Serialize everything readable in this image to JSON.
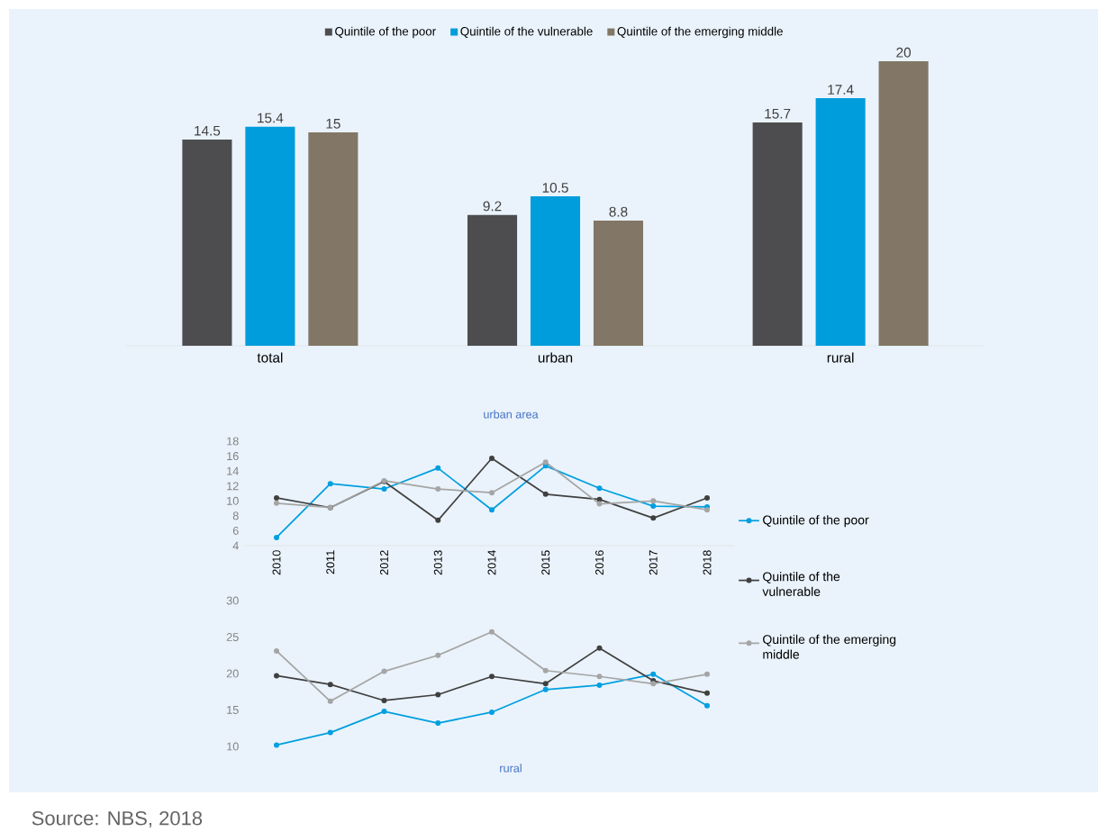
{
  "chart_data": [
    {
      "type": "bar",
      "categories": [
        "total",
        "urban",
        "rural"
      ],
      "data_labels": true,
      "legend": "top",
      "series": [
        {
          "name": "Quintile of the poor",
          "color": "#4d4d4f",
          "values": [
            14.5,
            9.2,
            15.7
          ]
        },
        {
          "name": "Quintile of the vulnerable",
          "color": "#009ddc",
          "values": [
            15.4,
            10.5,
            17.4
          ]
        },
        {
          "name": "Quintile of the emerging middle",
          "color": "#827766",
          "values": [
            15,
            8.8,
            20
          ]
        }
      ]
    },
    {
      "type": "line",
      "title": "urban area",
      "categories": [
        "2010",
        "2011",
        "2012",
        "2013",
        "2014",
        "2015",
        "2016",
        "2017",
        "2018"
      ],
      "ylim": [
        4,
        18
      ],
      "yticks": [
        4,
        6,
        8,
        10,
        12,
        14,
        16,
        18
      ],
      "legend": "right",
      "marker": "circle",
      "series": [
        {
          "name": "Quintile of the poor",
          "color": "#009fdf",
          "values": [
            5.1,
            12.3,
            11.6,
            14.4,
            8.8,
            14.7,
            11.7,
            9.3,
            9.2
          ]
        },
        {
          "name": "Quintile of the vulnerable",
          "color": "#404040",
          "values": [
            10.4,
            9.1,
            12.6,
            7.4,
            15.7,
            10.9,
            10.2,
            7.7,
            10.4
          ]
        },
        {
          "name": "Quintile of the emerging middle",
          "color": "#a5a5a5",
          "values": [
            9.7,
            9.1,
            12.7,
            11.6,
            11.1,
            15.2,
            9.6,
            10.0,
            8.8
          ]
        }
      ]
    },
    {
      "type": "line",
      "title": "rural",
      "categories": [
        null,
        null,
        null,
        null,
        null,
        null,
        null,
        null,
        null
      ],
      "ylim": [
        10,
        30
      ],
      "yticks": [
        10,
        15,
        20,
        25,
        30
      ],
      "marker": "circle",
      "annotations": [
        "Source: NBS, 2018"
      ],
      "series": [
        {
          "color": "#009fdf",
          "values": [
            10.2,
            11.9,
            14.8,
            13.2,
            14.7,
            17.8,
            18.4,
            19.9,
            15.6
          ]
        },
        {
          "color": "#404040",
          "values": [
            19.7,
            18.5,
            16.3,
            17.1,
            19.6,
            18.6,
            23.5,
            19.0,
            17.3
          ]
        },
        {
          "color": "#a5a5a5",
          "values": [
            23.1,
            16.2,
            20.3,
            22.5,
            25.7,
            20.4,
            19.6,
            18.6,
            19.9
          ]
        }
      ]
    }
  ]
}
